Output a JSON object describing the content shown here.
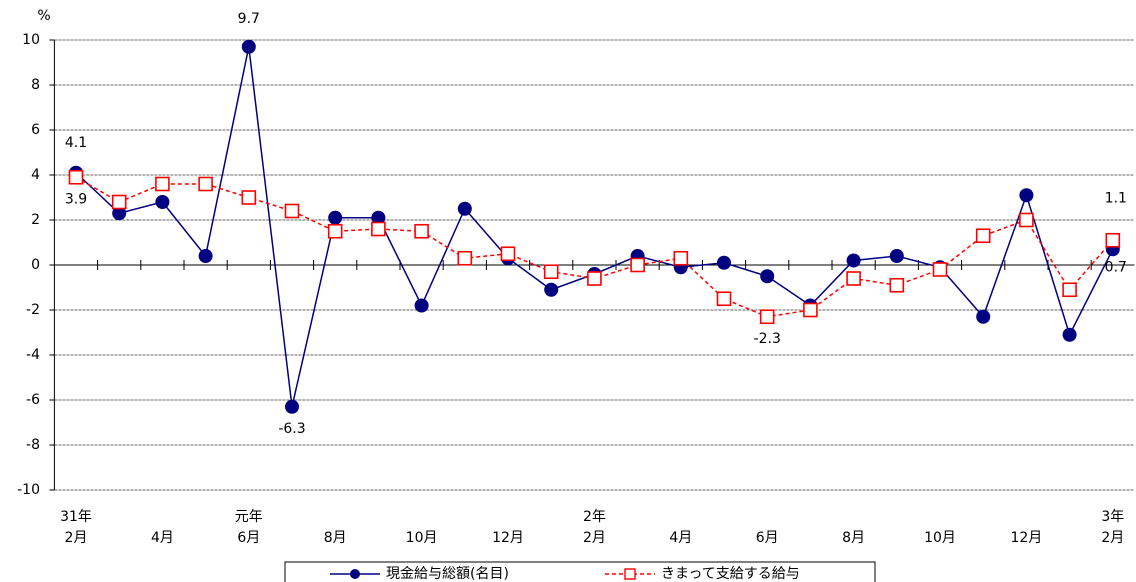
{
  "chart_data": {
    "type": "line",
    "y_unit": "%",
    "categories": [
      "2月",
      null,
      "4月",
      null,
      "6月",
      null,
      "8月",
      null,
      "10月",
      null,
      "12月",
      null,
      "2月",
      null,
      "4月",
      null,
      "6月",
      null,
      "8月",
      null,
      "10月",
      null,
      "12月",
      null,
      "2月"
    ],
    "category_years": [
      "31年",
      null,
      null,
      null,
      "元年",
      null,
      null,
      null,
      null,
      null,
      null,
      null,
      "2年",
      null,
      null,
      null,
      null,
      null,
      null,
      null,
      null,
      null,
      null,
      null,
      "3年"
    ],
    "series": [
      {
        "name": "現金給与総額(名目)",
        "color": "#000080",
        "marker": "circle",
        "dashed": false,
        "values": [
          4.1,
          2.3,
          2.8,
          0.4,
          9.7,
          -6.3,
          2.1,
          2.1,
          -1.8,
          2.5,
          0.3,
          -1.1,
          -0.4,
          0.4,
          -0.1,
          0.1,
          -0.5,
          -1.8,
          0.2,
          0.4,
          -0.1,
          -2.3,
          3.1,
          -3.1,
          0.7
        ],
        "value_labels": [
          "4.1",
          null,
          null,
          null,
          "9.7",
          "-6.3",
          null,
          null,
          null,
          null,
          null,
          null,
          null,
          null,
          null,
          null,
          null,
          null,
          null,
          null,
          null,
          null,
          null,
          null,
          "0.7"
        ]
      },
      {
        "name": "きまって支給する給与",
        "color": "#ff0000",
        "marker": "square",
        "dashed": true,
        "values": [
          3.9,
          2.8,
          3.6,
          3.6,
          3.0,
          2.4,
          1.5,
          1.6,
          1.5,
          0.3,
          0.5,
          -0.3,
          -0.6,
          0.0,
          0.3,
          -1.5,
          -2.3,
          -2.0,
          -0.6,
          -0.9,
          -0.2,
          1.3,
          2.0,
          -1.1,
          1.1
        ],
        "value_labels": [
          "3.9",
          null,
          null,
          null,
          null,
          null,
          null,
          null,
          null,
          null,
          null,
          null,
          null,
          null,
          null,
          null,
          "-2.3",
          null,
          null,
          null,
          null,
          null,
          null,
          null,
          "1.1"
        ]
      }
    ],
    "ylim": [
      -10,
      10
    ],
    "yticks": [
      -10,
      -8,
      -6,
      -4,
      -2,
      0,
      2,
      4,
      6,
      8,
      10
    ],
    "grid": true
  }
}
